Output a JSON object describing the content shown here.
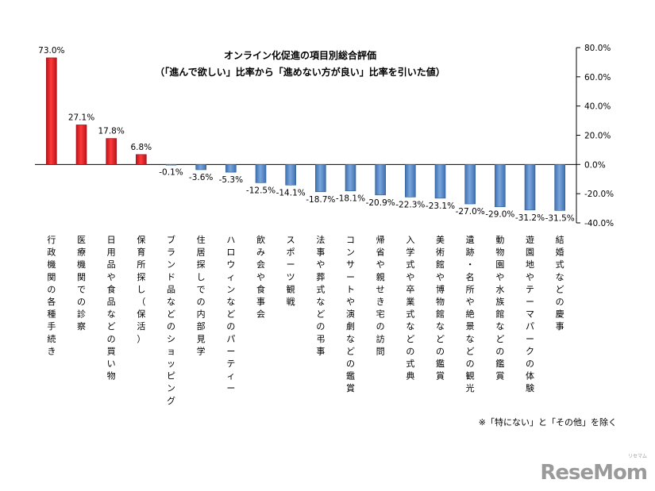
{
  "chart_data": {
    "type": "bar",
    "title": "オンライン化促進の項目別総合評価",
    "subtitle": "（「進んで欲しい」比率から「進めない方が良い」比率を引いた値）",
    "categories": [
      "行政機関の各種手続き",
      "医療機関での診察",
      "日用品や食品などの買い物",
      "保育所探し（保活）",
      "ブランド品などのショッピング",
      "住居探しでの内部見学",
      "ハロウィンなどのパーティー",
      "飲み会や食事会",
      "スポーツ観戦",
      "法事や葬式などの弔事",
      "コンサートや演劇などの鑑賞",
      "帰省や親せき宅の訪問",
      "入学式や卒業式などの式典",
      "美術館や博物館などの鑑賞",
      "遺跡・名所や絶景などの観光",
      "動物園や水族館などの鑑賞",
      "遊園地やテーマパークの体験",
      "結婚式などの慶事"
    ],
    "values": [
      73.0,
      27.1,
      17.8,
      6.8,
      -0.1,
      -3.6,
      -5.3,
      -12.5,
      -14.1,
      -18.7,
      -18.1,
      -20.9,
      -22.3,
      -23.1,
      -27.0,
      -29.0,
      -31.2,
      -31.5
    ],
    "data_labels": [
      "73.0%",
      "27.1%",
      "17.8%",
      "6.8%",
      "-0.1%",
      "-3.6%",
      "-5.3%",
      "-12.5%",
      "-14.1%",
      "-18.7%",
      "-18.1%",
      "-20.9%",
      "-22.3%",
      "-23.1%",
      "-27.0%",
      "-29.0%",
      "-31.2%",
      "-31.5%"
    ],
    "ylim": [
      -40,
      80
    ],
    "yticks": [
      80,
      60,
      40,
      20,
      0,
      -20,
      -40
    ],
    "ytick_labels": [
      "80.0%",
      "60.0%",
      "40.0%",
      "20.0%",
      "0.0%",
      "-20.0%",
      "-40.0%"
    ],
    "yaxis_position": "right",
    "xlabel": "",
    "ylabel": "",
    "grid": false,
    "colors": {
      "positive": "#e8202a",
      "negative": "#5b8ac6"
    }
  },
  "note": "※「特にない」と「その他」を除く",
  "logo": {
    "text": "ReseMom",
    "sub": "リセマム"
  }
}
